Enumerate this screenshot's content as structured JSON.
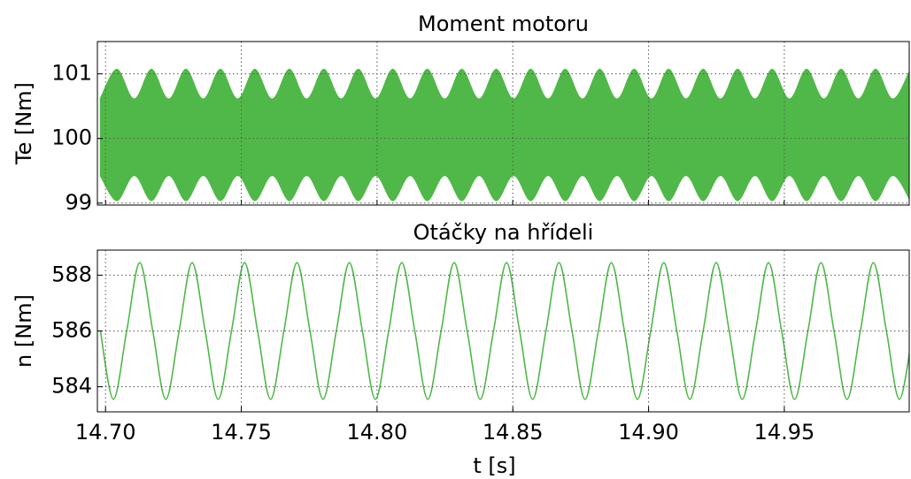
{
  "chart_data": [
    {
      "type": "band",
      "title": "Moment motoru",
      "ylabel": "Te [Nm]",
      "x": [
        14.6979,
        14.7042,
        14.7106,
        14.7169,
        14.7233,
        14.7296,
        14.736,
        14.7423,
        14.7487,
        14.755,
        14.7614,
        14.7677,
        14.7741,
        14.7804,
        14.7868,
        14.7931,
        14.7995,
        14.8058,
        14.8122,
        14.8185,
        14.8249,
        14.8312,
        14.8376,
        14.8439,
        14.8503,
        14.8566,
        14.863,
        14.8693,
        14.8757,
        14.882,
        14.8884,
        14.8947,
        14.9011,
        14.9074,
        14.9138,
        14.9201,
        14.9265,
        14.9328,
        14.9392,
        14.9455,
        14.9519,
        14.9582,
        14.9646,
        14.9709,
        14.9773,
        14.9836,
        14.99,
        14.9963
      ],
      "series": [
        {
          "color": "#50b848",
          "values": [
            100.62,
            101.08,
            100.62,
            101.08,
            100.62,
            101.08,
            100.62,
            101.08,
            100.62,
            101.08,
            100.62,
            101.08,
            100.62,
            101.08,
            100.62,
            101.08,
            100.62,
            101.08,
            100.62,
            101.08,
            100.62,
            101.08,
            100.62,
            101.08,
            100.62,
            101.08,
            100.62,
            101.08,
            100.62,
            101.08,
            100.62,
            101.08,
            100.62,
            101.08,
            100.62,
            101.08,
            100.62,
            101.08,
            100.62,
            101.08,
            100.62,
            101.08,
            100.62,
            101.08,
            100.62,
            101.08,
            100.62,
            101.08
          ]
        },
        {
          "color": "#50b848",
          "values": [
            99.42,
            99.03,
            99.42,
            99.03,
            99.42,
            99.03,
            99.42,
            99.03,
            99.42,
            99.03,
            99.42,
            99.03,
            99.42,
            99.03,
            99.42,
            99.03,
            99.42,
            99.03,
            99.42,
            99.03,
            99.42,
            99.03,
            99.42,
            99.03,
            99.42,
            99.03,
            99.42,
            99.03,
            99.42,
            99.03,
            99.42,
            99.03,
            99.42,
            99.03,
            99.42,
            99.03,
            99.42,
            99.03,
            99.42,
            99.03,
            99.42,
            99.03,
            99.42,
            99.03,
            99.42,
            99.03,
            99.42,
            99.03
          ]
        }
      ],
      "xlim": [
        14.697,
        14.996
      ],
      "xticks": [
        14.7,
        14.75,
        14.8,
        14.85,
        14.9,
        14.95
      ],
      "ylim": [
        98.97,
        101.5
      ],
      "yticks": [
        99,
        100,
        101
      ],
      "grid": true
    },
    {
      "type": "line",
      "title": "Otáčky na hřídeli",
      "ylabel": "n [Nm]",
      "xlabel": "t [s]",
      "x": [
        14.6981,
        14.7029,
        14.7078,
        14.7126,
        14.7174,
        14.7222,
        14.7271,
        14.7319,
        14.7367,
        14.7415,
        14.7464,
        14.7512,
        14.756,
        14.7608,
        14.7657,
        14.7705,
        14.7753,
        14.7801,
        14.785,
        14.7898,
        14.7946,
        14.7994,
        14.8043,
        14.8091,
        14.8139,
        14.8187,
        14.8236,
        14.8284,
        14.8332,
        14.838,
        14.8429,
        14.8477,
        14.8525,
        14.8573,
        14.8622,
        14.867,
        14.8718,
        14.8766,
        14.8815,
        14.8863,
        14.8911,
        14.8959,
        14.9008,
        14.9056,
        14.9104,
        14.9152,
        14.9201,
        14.9249,
        14.9297,
        14.9345,
        14.9394,
        14.9442,
        14.949,
        14.9538,
        14.9587,
        14.9635,
        14.9683,
        14.9731,
        14.978,
        14.9828,
        14.9876,
        14.9924,
        14.9973
      ],
      "series": [
        {
          "color": "#50b848",
          "values": [
            586,
            583.55,
            586,
            588.45,
            586,
            583.55,
            586,
            588.45,
            586,
            583.55,
            586,
            588.45,
            586,
            583.55,
            586,
            588.45,
            586,
            583.55,
            586,
            588.45,
            586,
            583.55,
            586,
            588.45,
            586,
            583.55,
            586,
            588.45,
            586,
            583.55,
            586,
            588.45,
            586,
            583.55,
            586,
            588.45,
            586,
            583.55,
            586,
            588.45,
            586,
            583.55,
            586,
            588.45,
            586,
            583.55,
            586,
            588.45,
            586,
            583.55,
            586,
            588.45,
            586,
            583.55,
            586,
            588.45,
            586,
            583.55,
            586,
            588.45,
            586,
            583.55,
            586
          ]
        }
      ],
      "xlim": [
        14.697,
        14.996
      ],
      "xticks": [
        {
          "value": 14.7,
          "label": "14.70"
        },
        {
          "value": 14.75,
          "label": "14.75"
        },
        {
          "value": 14.8,
          "label": "14.80"
        },
        {
          "value": 14.85,
          "label": "14.85"
        },
        {
          "value": 14.9,
          "label": "14.90"
        },
        {
          "value": 14.95,
          "label": "14.95"
        }
      ],
      "ylim": [
        583.1,
        588.9
      ],
      "yticks": [
        584,
        586,
        588
      ],
      "grid": true
    }
  ]
}
